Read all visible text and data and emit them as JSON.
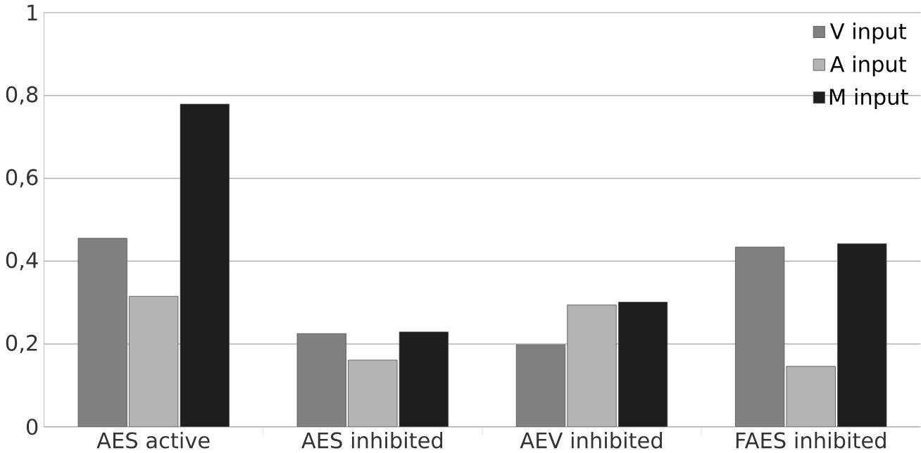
{
  "chart_data": {
    "type": "bar",
    "categories": [
      "AES active",
      "AES inhibited",
      "AEV inhibited",
      "FAES inhibited"
    ],
    "series": [
      {
        "name": "V input",
        "color": "#808080",
        "values": [
          0.455,
          0.225,
          0.198,
          0.434
        ]
      },
      {
        "name": "A input",
        "color": "#b4b4b4",
        "values": [
          0.315,
          0.161,
          0.294,
          0.146
        ]
      },
      {
        "name": "M input",
        "color": "#1e1e1e",
        "values": [
          0.779,
          0.229,
          0.301,
          0.442
        ]
      }
    ],
    "ylim": [
      0,
      1
    ],
    "yticks": [
      0,
      {
        "value": 0.2,
        "label": "0,2"
      },
      {
        "value": 0.4,
        "label": "0,4"
      },
      {
        "value": 0.6,
        "label": "0,6"
      },
      {
        "value": 0.8,
        "label": "0,8"
      },
      1
    ],
    "grid": "y",
    "legend": "top right"
  }
}
